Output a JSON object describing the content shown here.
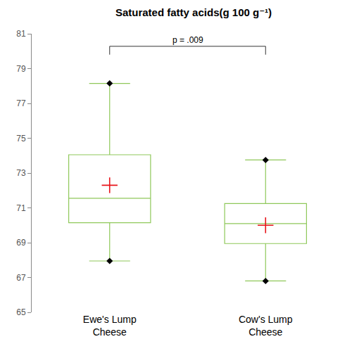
{
  "chart_data": {
    "type": "box",
    "title": "Saturated fatty acids(g 100 g⁻¹)",
    "categories": [
      "Ewe's Lump Cheese",
      "Cow's Lump Cheese"
    ],
    "boxes": [
      {
        "min": 67.95,
        "q1": 70.15,
        "median": 71.55,
        "q3": 74.05,
        "max": 78.15,
        "mean": 72.3
      },
      {
        "min": 66.8,
        "q1": 68.95,
        "median": 70.1,
        "q3": 71.25,
        "max": 73.75,
        "mean": 70.0
      }
    ],
    "color": "#8fc85a",
    "ylim": [
      65,
      81
    ],
    "yticks": [
      65,
      67,
      69,
      71,
      73,
      75,
      77,
      79,
      81
    ],
    "grid": false,
    "annotations": [
      {
        "text": "p = .009",
        "from": 0,
        "to": 1
      }
    ]
  }
}
